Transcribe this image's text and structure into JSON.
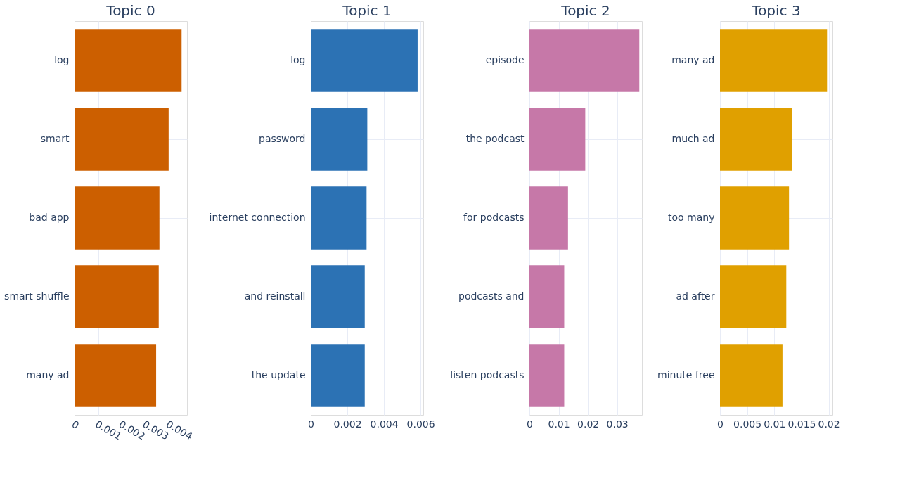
{
  "chart_data": [
    {
      "type": "bar",
      "orientation": "horizontal",
      "title": "Topic 0",
      "categories": [
        "log",
        "smart",
        "bad app",
        "smart shuffle",
        "many ad"
      ],
      "values": [
        0.00454,
        0.00399,
        0.0036,
        0.00357,
        0.00346
      ],
      "color": "#cc5f00",
      "xlim": [
        0,
        0.00477
      ],
      "xticks": [
        0,
        0.001,
        0.002,
        0.003,
        0.004
      ],
      "grid": true
    },
    {
      "type": "bar",
      "orientation": "horizontal",
      "title": "Topic 1",
      "categories": [
        "log",
        "password",
        "internet connection",
        "and reinstall",
        "the update"
      ],
      "values": [
        0.00584,
        0.00309,
        0.00305,
        0.00295,
        0.00295
      ],
      "color": "#2c72b4",
      "xlim": [
        0,
        0.00615
      ],
      "xticks": [
        0,
        0.002,
        0.004,
        0.006
      ],
      "grid": true
    },
    {
      "type": "bar",
      "orientation": "horizontal",
      "title": "Topic 2",
      "categories": [
        "episode",
        "the podcast",
        "for podcasts",
        "podcasts and",
        "listen podcasts"
      ],
      "values": [
        0.0376,
        0.0191,
        0.0132,
        0.0119,
        0.0119
      ],
      "color": "#c678a8",
      "xlim": [
        0,
        0.0385
      ],
      "xticks": [
        0,
        0.01,
        0.02,
        0.03
      ],
      "grid": true
    },
    {
      "type": "bar",
      "orientation": "horizontal",
      "title": "Topic 3",
      "categories": [
        "many ad",
        "much ad",
        "too many",
        "ad after",
        "minute free"
      ],
      "values": [
        0.0197,
        0.0132,
        0.0127,
        0.0122,
        0.0115
      ],
      "color": "#e0a000",
      "xlim": [
        0,
        0.0207
      ],
      "xticks": [
        0,
        0.005,
        0.01,
        0.015,
        0.02
      ],
      "grid": true
    }
  ]
}
